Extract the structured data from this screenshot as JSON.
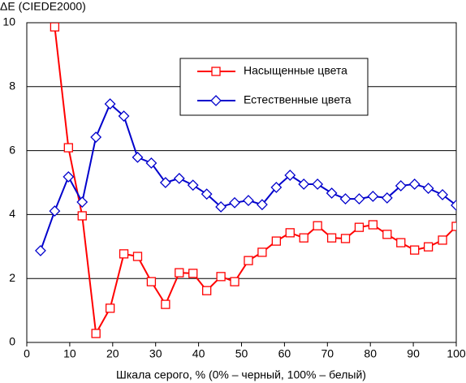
{
  "chart_data": {
    "type": "line",
    "y_axis_label": "ΔE (CIEDE2000)",
    "x_axis_label": "Шкала серого, % (0% – черный, 100% – белый)",
    "x": [
      0,
      3.2,
      6.5,
      9.7,
      12.9,
      16.1,
      19.4,
      22.6,
      25.8,
      29,
      32.3,
      35.5,
      38.7,
      41.9,
      45.2,
      48.4,
      51.6,
      54.8,
      58.1,
      61.3,
      64.5,
      67.7,
      71,
      74.2,
      77.4,
      80.6,
      83.9,
      87.1,
      90.3,
      93.5,
      96.8,
      100
    ],
    "series": [
      {
        "name": "Насыщенные цвета",
        "color": "#ff0000",
        "marker": "square",
        "values": [
          null,
          null,
          9.87,
          6.09,
          3.96,
          0.28,
          1.07,
          2.77,
          2.69,
          1.9,
          1.19,
          2.18,
          2.16,
          1.62,
          2.06,
          1.9,
          2.56,
          2.82,
          3.17,
          3.43,
          3.27,
          3.65,
          3.27,
          3.25,
          3.6,
          3.68,
          3.38,
          3.12,
          2.89,
          2.99,
          3.2,
          3.63
        ]
      },
      {
        "name": "Естественные цвета",
        "color": "#0000cc",
        "marker": "diamond",
        "values": [
          null,
          2.87,
          4.11,
          5.18,
          4.39,
          6.42,
          7.46,
          7.08,
          5.79,
          5.61,
          5.0,
          5.13,
          4.92,
          4.64,
          4.24,
          4.37,
          4.44,
          4.31,
          4.85,
          5.23,
          4.95,
          4.95,
          4.67,
          4.49,
          4.49,
          4.57,
          4.52,
          4.9,
          4.95,
          4.82,
          4.62,
          4.29
        ]
      }
    ],
    "xlim": [
      0,
      100
    ],
    "xticks": [
      0,
      10,
      20,
      30,
      40,
      50,
      60,
      70,
      80,
      90,
      100
    ],
    "ylim": [
      0,
      10
    ],
    "yticks": [
      0,
      2,
      4,
      6,
      8,
      10
    ],
    "grid": true,
    "legend": "top"
  }
}
